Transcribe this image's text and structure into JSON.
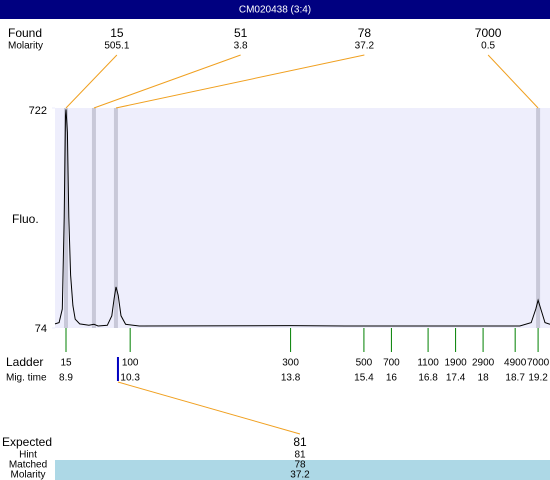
{
  "chart_data": {
    "type": "line",
    "title": "CM020438 (3:4)",
    "y_label": "Fluo.",
    "ylim": [
      74,
      722
    ],
    "yticks": [
      74,
      722
    ],
    "xlim": [
      8.66,
      19.46
    ],
    "color": "#000000",
    "x": [
      8.66,
      8.75,
      8.82,
      8.86,
      8.89,
      8.9,
      8.93,
      8.96,
      9.0,
      9.05,
      9.1,
      9.2,
      9.4,
      9.51,
      9.6,
      9.8,
      9.9,
      9.95,
      9.99,
      10.04,
      10.1,
      10.2,
      10.5,
      13.8,
      15.0,
      18.8,
      19.05,
      19.15,
      19.2,
      19.26,
      19.35,
      19.46
    ],
    "values": [
      86,
      90,
      130,
      400,
      700,
      718,
      650,
      400,
      230,
      140,
      100,
      86,
      82,
      85,
      80,
      82,
      110,
      160,
      195,
      170,
      110,
      85,
      80,
      81,
      80,
      80,
      90,
      130,
      156,
      130,
      90,
      85
    ],
    "found": {
      "label": "Found",
      "sub_label": "Molarity",
      "sizes": [
        15,
        51,
        78,
        7000
      ],
      "molarity": [
        505.1,
        3.8,
        37.2,
        0.5
      ],
      "migration_times": [
        8.9,
        9.51,
        9.99,
        19.2
      ]
    },
    "ladder": {
      "label": "Ladder",
      "sub_label": "Mig. time",
      "sizes": [
        15,
        100,
        300,
        500,
        700,
        1100,
        1900,
        2900,
        4900,
        7000
      ],
      "migration_times": [
        8.9,
        10.3,
        13.8,
        15.4,
        16,
        16.8,
        17.4,
        18,
        18.7,
        19.2
      ]
    },
    "expected": {
      "label": "Expected",
      "value": 81,
      "rows": [
        {
          "label": "Hint",
          "value": 81
        },
        {
          "label": "Matched",
          "value": 78
        },
        {
          "label": "Molarity",
          "value": 37.2
        }
      ]
    }
  }
}
